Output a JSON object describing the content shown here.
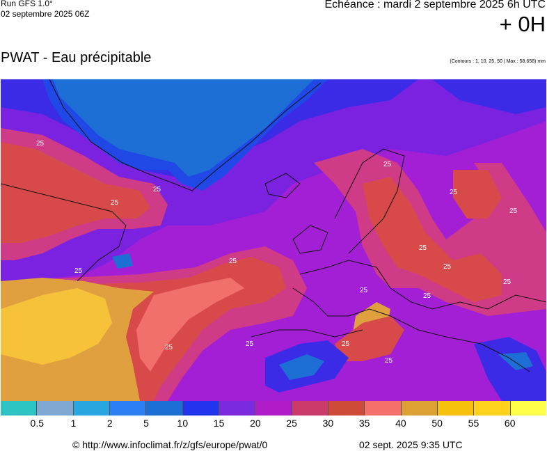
{
  "header": {
    "run": "Run GFS 1.0°",
    "run_date": "02 septembre 2025 06Z",
    "echeance": "Echéance : mardi 2 septembre 2025 6h UTC",
    "offset": "+ 0H",
    "product": "PWAT - Eau précipitable",
    "contours_note": "(Contours : 1, 10, 25, 50 | Max : 58.658) mm"
  },
  "map": {
    "contour_value_label": "25",
    "palette": {
      "lt5": "#1d6fd6",
      "5_10": "#1f48e6",
      "10_15": "#3b2ae6",
      "15_20": "#7a22e0",
      "20_25": "#a31fd6",
      "25_30": "#cf3b86",
      "30_35": "#d84a4a",
      "35_40": "#f2706a",
      "40_50": "#e0a040",
      "50_55": "#f5c23a"
    }
  },
  "legend": {
    "colors": [
      "#2ec4c4",
      "#7fa8d2",
      "#29a6e0",
      "#2d7ff5",
      "#1d6fd6",
      "#2233ee",
      "#7b2ae0",
      "#b01cc8",
      "#cc3a6c",
      "#d04a3a",
      "#f76f6a",
      "#dca034",
      "#f7c20c",
      "#ffd21c",
      "#ffff4a"
    ],
    "labels": [
      "0.5",
      "1",
      "2",
      "5",
      "10",
      "15",
      "20",
      "25",
      "30",
      "35",
      "40",
      "50",
      "55",
      "60"
    ]
  },
  "footer": {
    "url": "© http://www.infoclimat.fr/z/gfs/europe/pwat/0",
    "stamp": "02 sept. 2025  9:35 UTC"
  }
}
